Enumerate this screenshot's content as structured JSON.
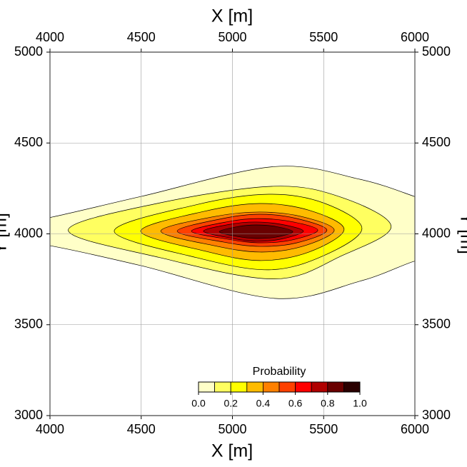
{
  "chart_data": {
    "type": "contour",
    "xlabel": "X [m]",
    "ylabel": "Y [m]",
    "xlim": [
      4000,
      6000
    ],
    "ylim": [
      3000,
      5000
    ],
    "xticks": [
      4000,
      4500,
      5000,
      5500,
      6000
    ],
    "yticks": [
      3000,
      3500,
      4000,
      4500,
      5000
    ],
    "grid": true,
    "contours": [
      {
        "x": [
          3950,
          4000,
          4500,
          5230,
          5700,
          6000,
          6050,
          6050,
          6000,
          5700,
          5230,
          4500,
          4000,
          3950
        ],
        "y": [
          4100,
          4090,
          4206,
          4370,
          4300,
          4205,
          4185,
          3830,
          3850,
          3740,
          3645,
          3825,
          3935,
          3925
        ]
      },
      {
        "x": [
          4100,
          4600,
          5230,
          5600,
          5870,
          5600,
          5230,
          4600
        ],
        "y": [
          4020,
          4170,
          4262,
          4200,
          4040,
          3880,
          3752,
          3870
        ]
      },
      {
        "x": [
          4352,
          4800,
          5200,
          5500,
          5710,
          5500,
          5200,
          4800
        ],
        "y": [
          4015,
          4160,
          4218,
          4170,
          4030,
          3880,
          3802,
          3870
        ]
      },
      {
        "x": [
          4497,
          4850,
          5150,
          5420,
          5612,
          5420,
          5150,
          4850
        ],
        "y": [
          4015,
          4125,
          4167,
          4130,
          4025,
          3900,
          3853,
          3905
        ]
      },
      {
        "x": [
          4607,
          4900,
          5150,
          5380,
          5558,
          5380,
          5150,
          4900
        ],
        "y": [
          4015,
          4095,
          4120,
          4095,
          4020,
          3930,
          3900,
          3935
        ]
      },
      {
        "x": [
          4697,
          4950,
          5150,
          5350,
          5518,
          5350,
          5150,
          4950
        ],
        "y": [
          4015,
          4085,
          4108,
          4085,
          4020,
          3950,
          3931,
          3955
        ]
      },
      {
        "x": [
          4775,
          4980,
          5140,
          5320,
          5468,
          5320,
          5140,
          4980
        ],
        "y": [
          4015,
          4068,
          4084,
          4068,
          4020,
          3965,
          3951,
          3970
        ]
      },
      {
        "x": [
          4841,
          5000,
          5130,
          5270,
          5389,
          5270,
          5130,
          5000
        ],
        "y": [
          4015,
          4055,
          4065,
          4052,
          4015,
          3972,
          3959,
          3975
        ]
      },
      {
        "x": [
          4928,
          5030,
          5130,
          5240,
          5331,
          5240,
          5130,
          5030
        ],
        "y": [
          4012,
          4040,
          4049,
          4040,
          4012,
          3982,
          3975,
          3985
        ]
      }
    ],
    "colorbar": {
      "title": "Probability",
      "lim": [
        0,
        1
      ],
      "ticks": [
        {
          "value": 0,
          "label": "0.0"
        },
        0.2,
        0.4,
        0.6,
        0.8,
        {
          "value": 1,
          "label": "1.0"
        }
      ],
      "colors": [
        "#ffffc8",
        "#ffff60",
        "#ffff00",
        "#ffbb00",
        "#ff8000",
        "#ff4000",
        "#ff0000",
        "#b00000",
        "#6a0000",
        "#2a0000"
      ]
    }
  }
}
